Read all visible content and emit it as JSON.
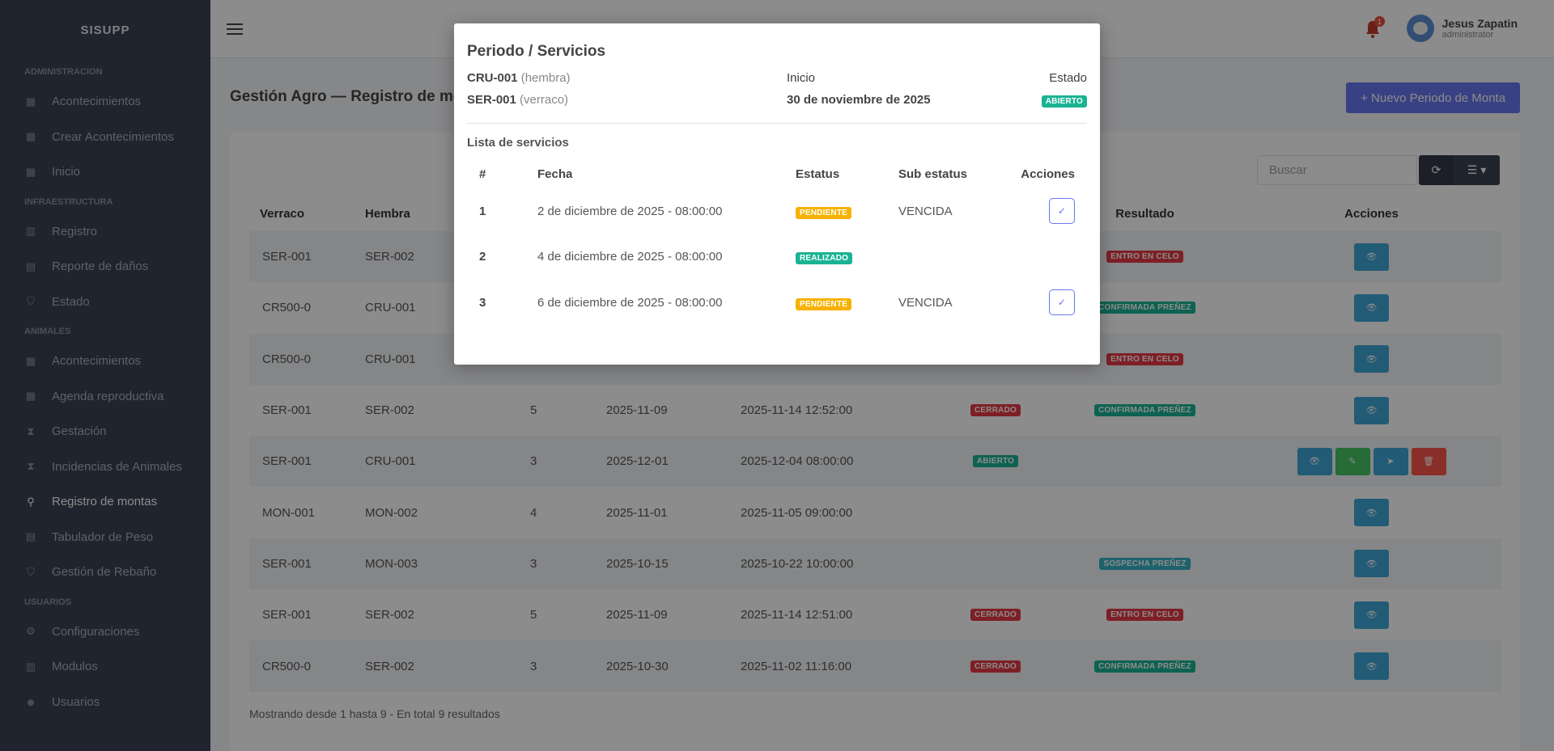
{
  "app": {
    "brand": "SISUPP"
  },
  "sidebar": {
    "sections": [
      {
        "title": "ADMINISTRACION",
        "items": [
          {
            "label": "Acontecimientos",
            "icon": "dashboard-icon"
          },
          {
            "label": "Crear Acontecimientos",
            "icon": "dashboard-icon"
          },
          {
            "label": "Inicio",
            "icon": "dashboard-icon"
          }
        ]
      },
      {
        "title": "INFRAESTRUCTURA",
        "items": [
          {
            "label": "Registro",
            "icon": "building-icon"
          },
          {
            "label": "Reporte de daños",
            "icon": "file-icon"
          },
          {
            "label": "Estado",
            "icon": "shield-check-icon"
          }
        ]
      },
      {
        "title": "ANIMALES",
        "items": [
          {
            "label": "Acontecimientos",
            "icon": "calendar-icon"
          },
          {
            "label": "Agenda reproductiva",
            "icon": "calendar-icon"
          },
          {
            "label": "Gestación",
            "icon": "hourglass-icon"
          },
          {
            "label": "Incidencias de Animales",
            "icon": "hourglass-icon"
          },
          {
            "label": "Registro de montas",
            "icon": "gender-icon",
            "active": true
          },
          {
            "label": "Tabulador de Peso",
            "icon": "table-icon"
          },
          {
            "label": "Gestión de Rebaño",
            "icon": "shield-icon"
          }
        ]
      },
      {
        "title": "USUARIOS",
        "items": [
          {
            "label": "Configuraciones",
            "icon": "gear-icon"
          },
          {
            "label": "Modulos",
            "icon": "columns-icon"
          },
          {
            "label": "Usuarios",
            "icon": "users-icon"
          }
        ]
      }
    ]
  },
  "topbar": {
    "notification_count": "1",
    "user_name": "Jesus Zapatin",
    "user_role": "administrator"
  },
  "page": {
    "title": "Gestión Agro — Registro de montas",
    "new_button": "+ Nuevo Periodo de Monta",
    "search_placeholder": "Buscar",
    "footer": "Mostrando desde 1 hasta 9 - En total 9 resultados"
  },
  "table": {
    "headers": {
      "verraco": "Verraco",
      "hembra": "Hembra",
      "resultado": "Resultado",
      "acciones": "Acciones"
    },
    "rows": [
      {
        "verraco": "SER-001",
        "hembra": "SER-002",
        "n": "",
        "inicio": "",
        "fin": "",
        "estado": "",
        "resultado": "ENTRO EN CELO",
        "res_color": "red",
        "actions": [
          "view"
        ]
      },
      {
        "verraco": "CR500-0",
        "hembra": "CRU-001",
        "n": "",
        "inicio": "",
        "fin": "",
        "estado": "",
        "resultado": "CONFIRMADA PREÑEZ",
        "res_color": "green",
        "actions": [
          "view"
        ]
      },
      {
        "verraco": "CR500-0",
        "hembra": "CRU-001",
        "n": "",
        "inicio": "",
        "fin": "",
        "estado": "",
        "resultado": "ENTRO EN CELO",
        "res_color": "red",
        "actions": [
          "view"
        ]
      },
      {
        "verraco": "SER-001",
        "hembra": "SER-002",
        "n": "5",
        "inicio": "2025-11-09",
        "fin": "2025-11-14 12:52:00",
        "estado": "CERRADO",
        "estado_color": "red",
        "resultado": "CONFIRMADA PREÑEZ",
        "res_color": "green",
        "actions": [
          "view"
        ]
      },
      {
        "verraco": "SER-001",
        "hembra": "CRU-001",
        "n": "3",
        "inicio": "2025-12-01",
        "fin": "2025-12-04 08:00:00",
        "estado": "ABIERTO",
        "estado_color": "green",
        "resultado": "",
        "actions": [
          "view",
          "edit",
          "send",
          "delete"
        ]
      },
      {
        "verraco": "MON-001",
        "hembra": "MON-002",
        "n": "4",
        "inicio": "2025-11-01",
        "fin": "2025-11-05 09:00:00",
        "estado": "",
        "resultado": "",
        "actions": [
          "view"
        ]
      },
      {
        "verraco": "SER-001",
        "hembra": "MON-003",
        "n": "3",
        "inicio": "2025-10-15",
        "fin": "2025-10-22 10:00:00",
        "estado": "",
        "resultado": "SOSPECHA PREÑEZ",
        "res_color": "teal",
        "actions": [
          "view"
        ]
      },
      {
        "verraco": "SER-001",
        "hembra": "SER-002",
        "n": "5",
        "inicio": "2025-11-09",
        "fin": "2025-11-14 12:51:00",
        "estado": "CERRADO",
        "estado_color": "red",
        "resultado": "ENTRO EN CELO",
        "res_color": "red",
        "actions": [
          "view"
        ]
      },
      {
        "verraco": "CR500-0",
        "hembra": "SER-002",
        "n": "3",
        "inicio": "2025-10-30",
        "fin": "2025-11-02 11:16:00",
        "estado": "CERRADO",
        "estado_color": "red",
        "resultado": "CONFIRMADA PREÑEZ",
        "res_color": "green",
        "actions": [
          "view"
        ]
      }
    ]
  },
  "modal": {
    "title": "Periodo / Servicios",
    "hembra_code": "CRU-001",
    "hembra_label": "(hembra)",
    "verraco_code": "SER-001",
    "verraco_label": "(verraco)",
    "inicio_label": "Inicio",
    "inicio_value": "30 de noviembre de 2025",
    "estado_label": "Estado",
    "estado_value": "ABIERTO",
    "list_title": "Lista de servicios",
    "headers": {
      "n": "#",
      "fecha": "Fecha",
      "estatus": "Estatus",
      "sub": "Sub estatus",
      "acciones": "Acciones"
    },
    "rows": [
      {
        "n": "1",
        "fecha": "2 de diciembre de 2025 - 08:00:00",
        "estatus": "PENDIENTE",
        "estatus_color": "yellow",
        "sub": "VENCIDA",
        "action": true
      },
      {
        "n": "2",
        "fecha": "4 de diciembre de 2025 - 08:00:00",
        "estatus": "REALIZADO",
        "estatus_color": "green",
        "sub": "",
        "action": false
      },
      {
        "n": "3",
        "fecha": "6 de diciembre de 2025 - 08:00:00",
        "estatus": "PENDIENTE",
        "estatus_color": "yellow",
        "sub": "VENCIDA",
        "action": true
      }
    ]
  }
}
